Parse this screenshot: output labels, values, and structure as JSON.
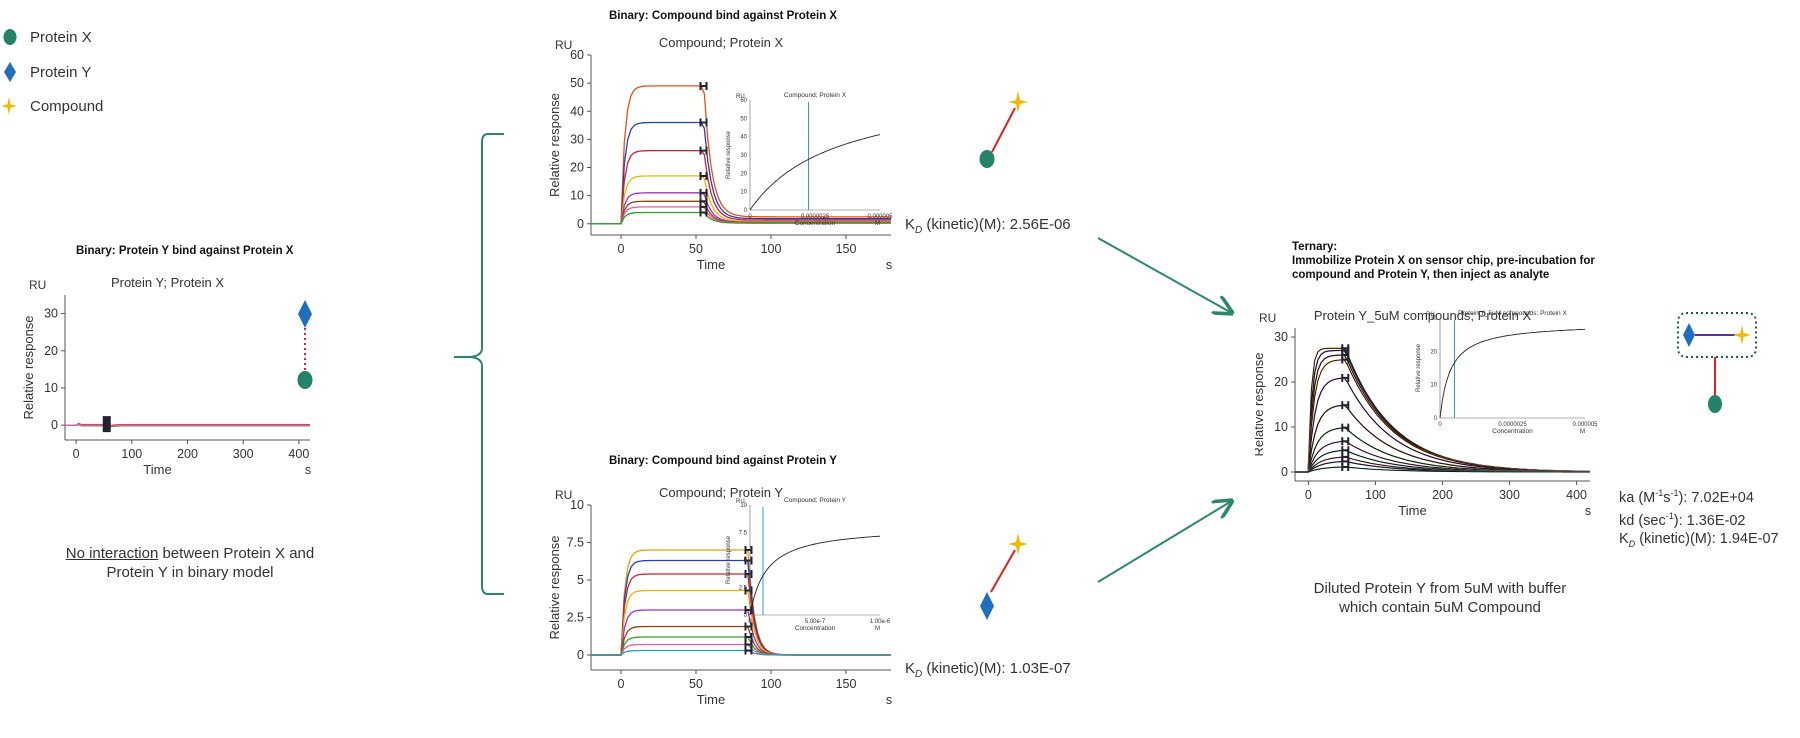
{
  "legend": {
    "items": [
      {
        "label": "Protein X",
        "icon": "green-circle-icon",
        "color": "#23826a"
      },
      {
        "label": "Protein Y",
        "icon": "blue-diamond-icon",
        "color": "#1f6fc0"
      },
      {
        "label": "Compound",
        "icon": "yellow-star-icon",
        "color": "#f5b800"
      }
    ]
  },
  "panels": {
    "pyx": {
      "heading": "Binary: Protein Y bind against Protein X",
      "caption_underlined": "No interaction",
      "caption_rest_line1": " between Protein X and",
      "caption_line2": "Protein Y in binary model"
    },
    "cx": {
      "heading": "Binary: Compound bind against Protein X",
      "kd_label": "(kinetic)(M): 2.56E-06"
    },
    "cy": {
      "heading": "Binary: Compound bind against Protein Y",
      "kd_label": "(kinetic)(M): 1.03E-07"
    },
    "ternary": {
      "heading_line1": "Ternary:",
      "heading_line2": "Immobilize Protein X on sensor chip, pre-incubation for",
      "heading_line3": "compound and Protein Y, then inject as analyte",
      "ka_label": "ka (M",
      "ka_value": "): 7.02E+04",
      "kd_label": "kd (sec",
      "kd_value": "): 1.36E-02",
      "KD_label": "(kinetic)(M): 1.94E-07",
      "caption_line1": "Diluted Protein Y from 5uM with buffer",
      "caption_line2": "which contain 5uM Compound"
    }
  },
  "kd_symbol": "K",
  "kd_subscript": "D",
  "colors": {
    "arrow": "#2a8a66",
    "bracket": "#2a8a66",
    "link_red": "#e02020",
    "link_purple": "#5a2ea0",
    "box_dotted": "#1f5c3c"
  },
  "chart_data": [
    {
      "id": "pyx",
      "type": "line",
      "title": "Protein Y; Protein X",
      "unit_label": "RU",
      "xlabel": "Time",
      "x_unit": "s",
      "ylabel": "Relative response",
      "xlim": [
        -20,
        420
      ],
      "ylim": [
        -4,
        35
      ],
      "xticks": [
        0,
        100,
        200,
        300,
        400
      ],
      "yticks": [
        0,
        10,
        20,
        30
      ],
      "injection_end": 55,
      "series_colors": [
        "#e8a000",
        "#8b4513",
        "#c03030",
        "#7070d0",
        "#4a9a4a",
        "#e060c0"
      ],
      "series_levels": [
        0.6,
        0.3,
        0.0,
        -0.3,
        -0.6,
        -0.2
      ]
    },
    {
      "id": "cx",
      "type": "line",
      "title": "Compound; Protein X",
      "unit_label": "RU",
      "xlabel": "Time",
      "x_unit": "s",
      "ylabel": "Relative response",
      "xlim": [
        -20,
        180
      ],
      "ylim": [
        -4,
        60
      ],
      "xticks": [
        0,
        50,
        100,
        150
      ],
      "yticks": [
        0,
        10,
        20,
        30,
        40,
        50,
        60
      ],
      "injection_end": 55,
      "series_colors": [
        "#e85010",
        "#2040c0",
        "#d02030",
        "#e8b800",
        "#a030c0",
        "#8b4513",
        "#e060a0",
        "#30a030"
      ],
      "series_levels": [
        49,
        36,
        26,
        17,
        11,
        8,
        6,
        4
      ],
      "inset": {
        "title": "Compound; Protein X",
        "xlabel": "Concentration",
        "unit": "M",
        "ylabel": "Relative response",
        "xticks": [
          "0",
          "0.0000025",
          "0.000005"
        ],
        "yticks": [
          "0",
          "10",
          "20",
          "30",
          "40",
          "50",
          "60"
        ],
        "y_unit": "RU"
      }
    },
    {
      "id": "cy",
      "type": "line",
      "title": "Compound; Protein Y",
      "unit_label": "RU",
      "xlabel": "Time",
      "x_unit": "s",
      "ylabel": "Relative response",
      "xlim": [
        -20,
        180
      ],
      "ylim": [
        -1,
        10
      ],
      "xticks": [
        0,
        50,
        100,
        150
      ],
      "yticks": [
        0,
        2.5,
        5,
        7.5,
        10
      ],
      "ytick_labels": [
        "0",
        "2.5",
        "5",
        "7.5",
        "10"
      ],
      "injection_end": 85,
      "series_colors": [
        "#e8a000",
        "#2040c0",
        "#d02030",
        "#e8b800",
        "#a030c0",
        "#8b4513",
        "#30a030",
        "#e060a0",
        "#20a0b0"
      ],
      "series_levels": [
        7.0,
        6.3,
        5.4,
        4.3,
        3.0,
        1.9,
        1.2,
        0.7,
        0.3
      ],
      "inset": {
        "title": "Compound; Protein Y",
        "xlabel": "Concentration",
        "unit": "M",
        "ylabel": "Relative response",
        "xticks": [
          "0",
          "5.00e-7",
          "1.00e-6"
        ],
        "yticks": [
          "0",
          "2.5",
          "5",
          "7.5",
          "10"
        ],
        "y_unit": "RU"
      }
    },
    {
      "id": "ternary",
      "type": "line",
      "title": "Protein Y_5uM compounds; Protein X",
      "unit_label": "RU",
      "xlabel": "Time",
      "x_unit": "s",
      "ylabel": "Relative response",
      "xlim": [
        -20,
        420
      ],
      "ylim": [
        -2,
        32
      ],
      "xticks": [
        0,
        100,
        200,
        300,
        400
      ],
      "yticks": [
        0,
        10,
        20,
        30
      ],
      "injection_end": 55,
      "series_colors": [
        "#e8a000",
        "#2040c0",
        "#d02030",
        "#e8b800",
        "#a030c0",
        "#8b4513",
        "#30a030",
        "#e060a0",
        "#20a0b0",
        "#ff7f50",
        "#6a5acd",
        "#3cb371"
      ],
      "series_levels": [
        27.5,
        27,
        26,
        25,
        21,
        15,
        10,
        7,
        5,
        3.5,
        2.5,
        1.2
      ],
      "inset": {
        "title": "Protein Y_5uM compounds; Protein X",
        "xlabel": "Concentration",
        "unit": "M",
        "ylabel": "Relative response",
        "xticks": [
          "0",
          "0.0000025",
          "0.000005"
        ],
        "yticks": [
          "0",
          "10",
          "20",
          "30"
        ],
        "y_unit": "RU"
      }
    }
  ]
}
